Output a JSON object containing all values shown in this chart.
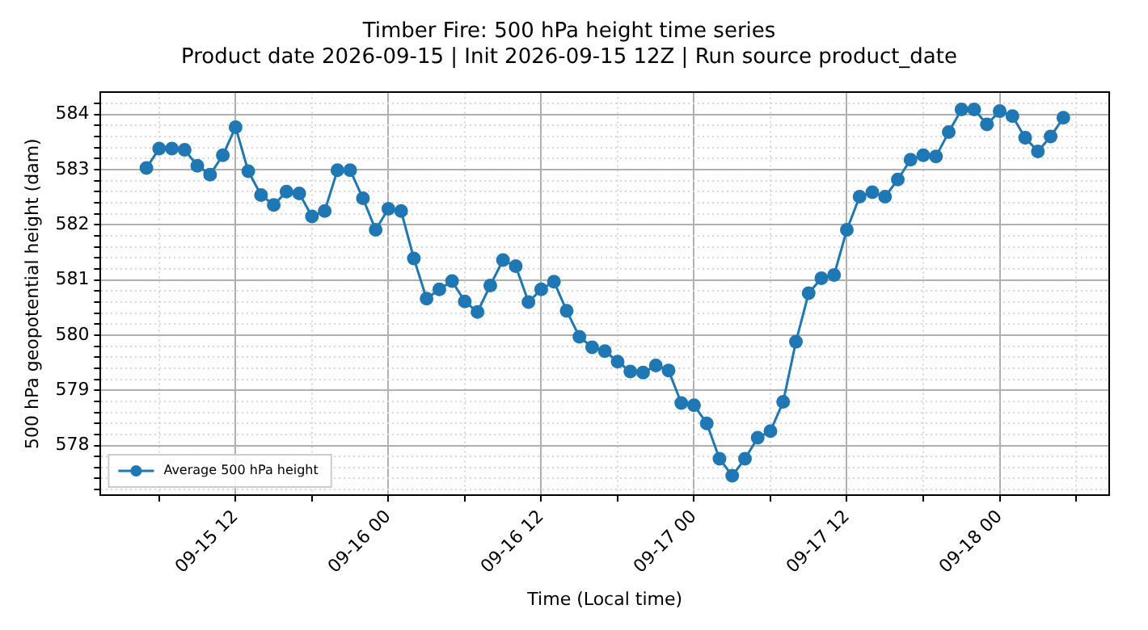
{
  "chart_data": {
    "type": "line",
    "title": "Timber Fire: 500 hPa height time series",
    "subtitle": "Product date 2026-09-15 | Init 2026-09-15 12Z | Run source product_date",
    "xlabel": "Time (Local time)",
    "ylabel": "500 hPa geopotential height (dam)",
    "x": [
      "2026-09-15T05:00",
      "2026-09-15T06:00",
      "2026-09-15T07:00",
      "2026-09-15T08:00",
      "2026-09-15T09:00",
      "2026-09-15T10:00",
      "2026-09-15T11:00",
      "2026-09-15T12:00",
      "2026-09-15T13:00",
      "2026-09-15T14:00",
      "2026-09-15T15:00",
      "2026-09-15T16:00",
      "2026-09-15T17:00",
      "2026-09-15T18:00",
      "2026-09-15T19:00",
      "2026-09-15T20:00",
      "2026-09-15T21:00",
      "2026-09-15T22:00",
      "2026-09-15T23:00",
      "2026-09-16T00:00",
      "2026-09-16T01:00",
      "2026-09-16T02:00",
      "2026-09-16T03:00",
      "2026-09-16T04:00",
      "2026-09-16T05:00",
      "2026-09-16T06:00",
      "2026-09-16T07:00",
      "2026-09-16T08:00",
      "2026-09-16T09:00",
      "2026-09-16T10:00",
      "2026-09-16T11:00",
      "2026-09-16T12:00",
      "2026-09-16T13:00",
      "2026-09-16T14:00",
      "2026-09-16T15:00",
      "2026-09-16T16:00",
      "2026-09-16T17:00",
      "2026-09-16T18:00",
      "2026-09-16T19:00",
      "2026-09-16T20:00",
      "2026-09-16T21:00",
      "2026-09-16T22:00",
      "2026-09-16T23:00",
      "2026-09-17T00:00",
      "2026-09-17T01:00",
      "2026-09-17T02:00",
      "2026-09-17T03:00",
      "2026-09-17T04:00",
      "2026-09-17T05:00",
      "2026-09-17T06:00",
      "2026-09-17T07:00",
      "2026-09-17T08:00",
      "2026-09-17T09:00",
      "2026-09-17T10:00",
      "2026-09-17T11:00",
      "2026-09-17T12:00",
      "2026-09-17T13:00",
      "2026-09-17T14:00",
      "2026-09-17T15:00",
      "2026-09-17T16:00",
      "2026-09-17T17:00",
      "2026-09-17T18:00",
      "2026-09-17T19:00",
      "2026-09-17T20:00",
      "2026-09-17T21:00",
      "2026-09-17T22:00",
      "2026-09-17T23:00",
      "2026-09-18T00:00",
      "2026-09-18T01:00",
      "2026-09-18T02:00",
      "2026-09-18T03:00",
      "2026-09-18T04:00",
      "2026-09-18T05:00"
    ],
    "series": [
      {
        "name": "Average 500 hPa height",
        "color": "#1f77b4",
        "values": [
          583.03,
          583.38,
          583.38,
          583.36,
          583.07,
          582.91,
          583.26,
          583.77,
          582.97,
          582.54,
          582.36,
          582.6,
          582.57,
          582.15,
          582.25,
          582.99,
          582.99,
          582.48,
          581.91,
          582.29,
          582.25,
          581.39,
          580.66,
          580.83,
          580.98,
          580.61,
          580.42,
          580.9,
          581.36,
          581.25,
          580.6,
          580.83,
          580.97,
          580.44,
          579.97,
          579.78,
          579.71,
          579.52,
          579.34,
          579.32,
          579.45,
          579.36,
          578.77,
          578.73,
          578.4,
          577.76,
          577.45,
          577.76,
          578.14,
          578.26,
          578.79,
          579.88,
          580.76,
          581.03,
          581.09,
          581.91,
          582.51,
          582.59,
          582.51,
          582.82,
          583.18,
          583.26,
          583.24,
          583.68,
          584.09,
          584.09,
          583.82,
          584.06,
          583.97,
          583.58,
          583.33,
          583.6,
          583.94
        ]
      }
    ],
    "xlim": [
      "2026-09-15T01:24",
      "2026-09-18T08:36"
    ],
    "xticks": [
      {
        "value": "2026-09-15T06:00",
        "label": null
      },
      {
        "value": "2026-09-15T12:00",
        "label": "09-15 12"
      },
      {
        "value": "2026-09-15T18:00",
        "label": null
      },
      {
        "value": "2026-09-16T00:00",
        "label": "09-16 00"
      },
      {
        "value": "2026-09-16T06:00",
        "label": null
      },
      {
        "value": "2026-09-16T12:00",
        "label": "09-16 12"
      },
      {
        "value": "2026-09-16T18:00",
        "label": null
      },
      {
        "value": "2026-09-17T00:00",
        "label": "09-17 00"
      },
      {
        "value": "2026-09-17T06:00",
        "label": null
      },
      {
        "value": "2026-09-17T12:00",
        "label": "09-17 12"
      },
      {
        "value": "2026-09-17T18:00",
        "label": null
      },
      {
        "value": "2026-09-18T00:00",
        "label": "09-18 00"
      },
      {
        "value": "2026-09-18T06:00",
        "label": null
      }
    ],
    "ylim": [
      577.1,
      584.4
    ],
    "yticks": [
      {
        "value": 577.2,
        "label": null
      },
      {
        "value": 577.4,
        "label": null
      },
      {
        "value": 577.6,
        "label": null
      },
      {
        "value": 577.8,
        "label": null
      },
      578,
      {
        "value": 578.2,
        "label": null
      },
      {
        "value": 578.4,
        "label": null
      },
      {
        "value": 578.6,
        "label": null
      },
      {
        "value": 578.8,
        "label": null
      },
      579,
      {
        "value": 579.2,
        "label": null
      },
      {
        "value": 579.4,
        "label": null
      },
      {
        "value": 579.6,
        "label": null
      },
      {
        "value": 579.8,
        "label": null
      },
      580,
      {
        "value": 580.2,
        "label": null
      },
      {
        "value": 580.4,
        "label": null
      },
      {
        "value": 580.6,
        "label": null
      },
      {
        "value": 580.8,
        "label": null
      },
      581,
      {
        "value": 581.2,
        "label": null
      },
      {
        "value": 581.4,
        "label": null
      },
      {
        "value": 581.6,
        "label": null
      },
      {
        "value": 581.8,
        "label": null
      },
      582,
      {
        "value": 582.2,
        "label": null
      },
      {
        "value": 582.4,
        "label": null
      },
      {
        "value": 582.6,
        "label": null
      },
      {
        "value": 582.8,
        "label": null
      },
      583,
      {
        "value": 583.2,
        "label": null
      },
      {
        "value": 583.4,
        "label": null
      },
      {
        "value": 583.6,
        "label": null
      },
      {
        "value": 583.8,
        "label": null
      },
      584,
      {
        "value": 584.2,
        "label": null
      }
    ],
    "grid": true,
    "legend": "bottom left",
    "marker": "circle",
    "line_style": "solid"
  }
}
